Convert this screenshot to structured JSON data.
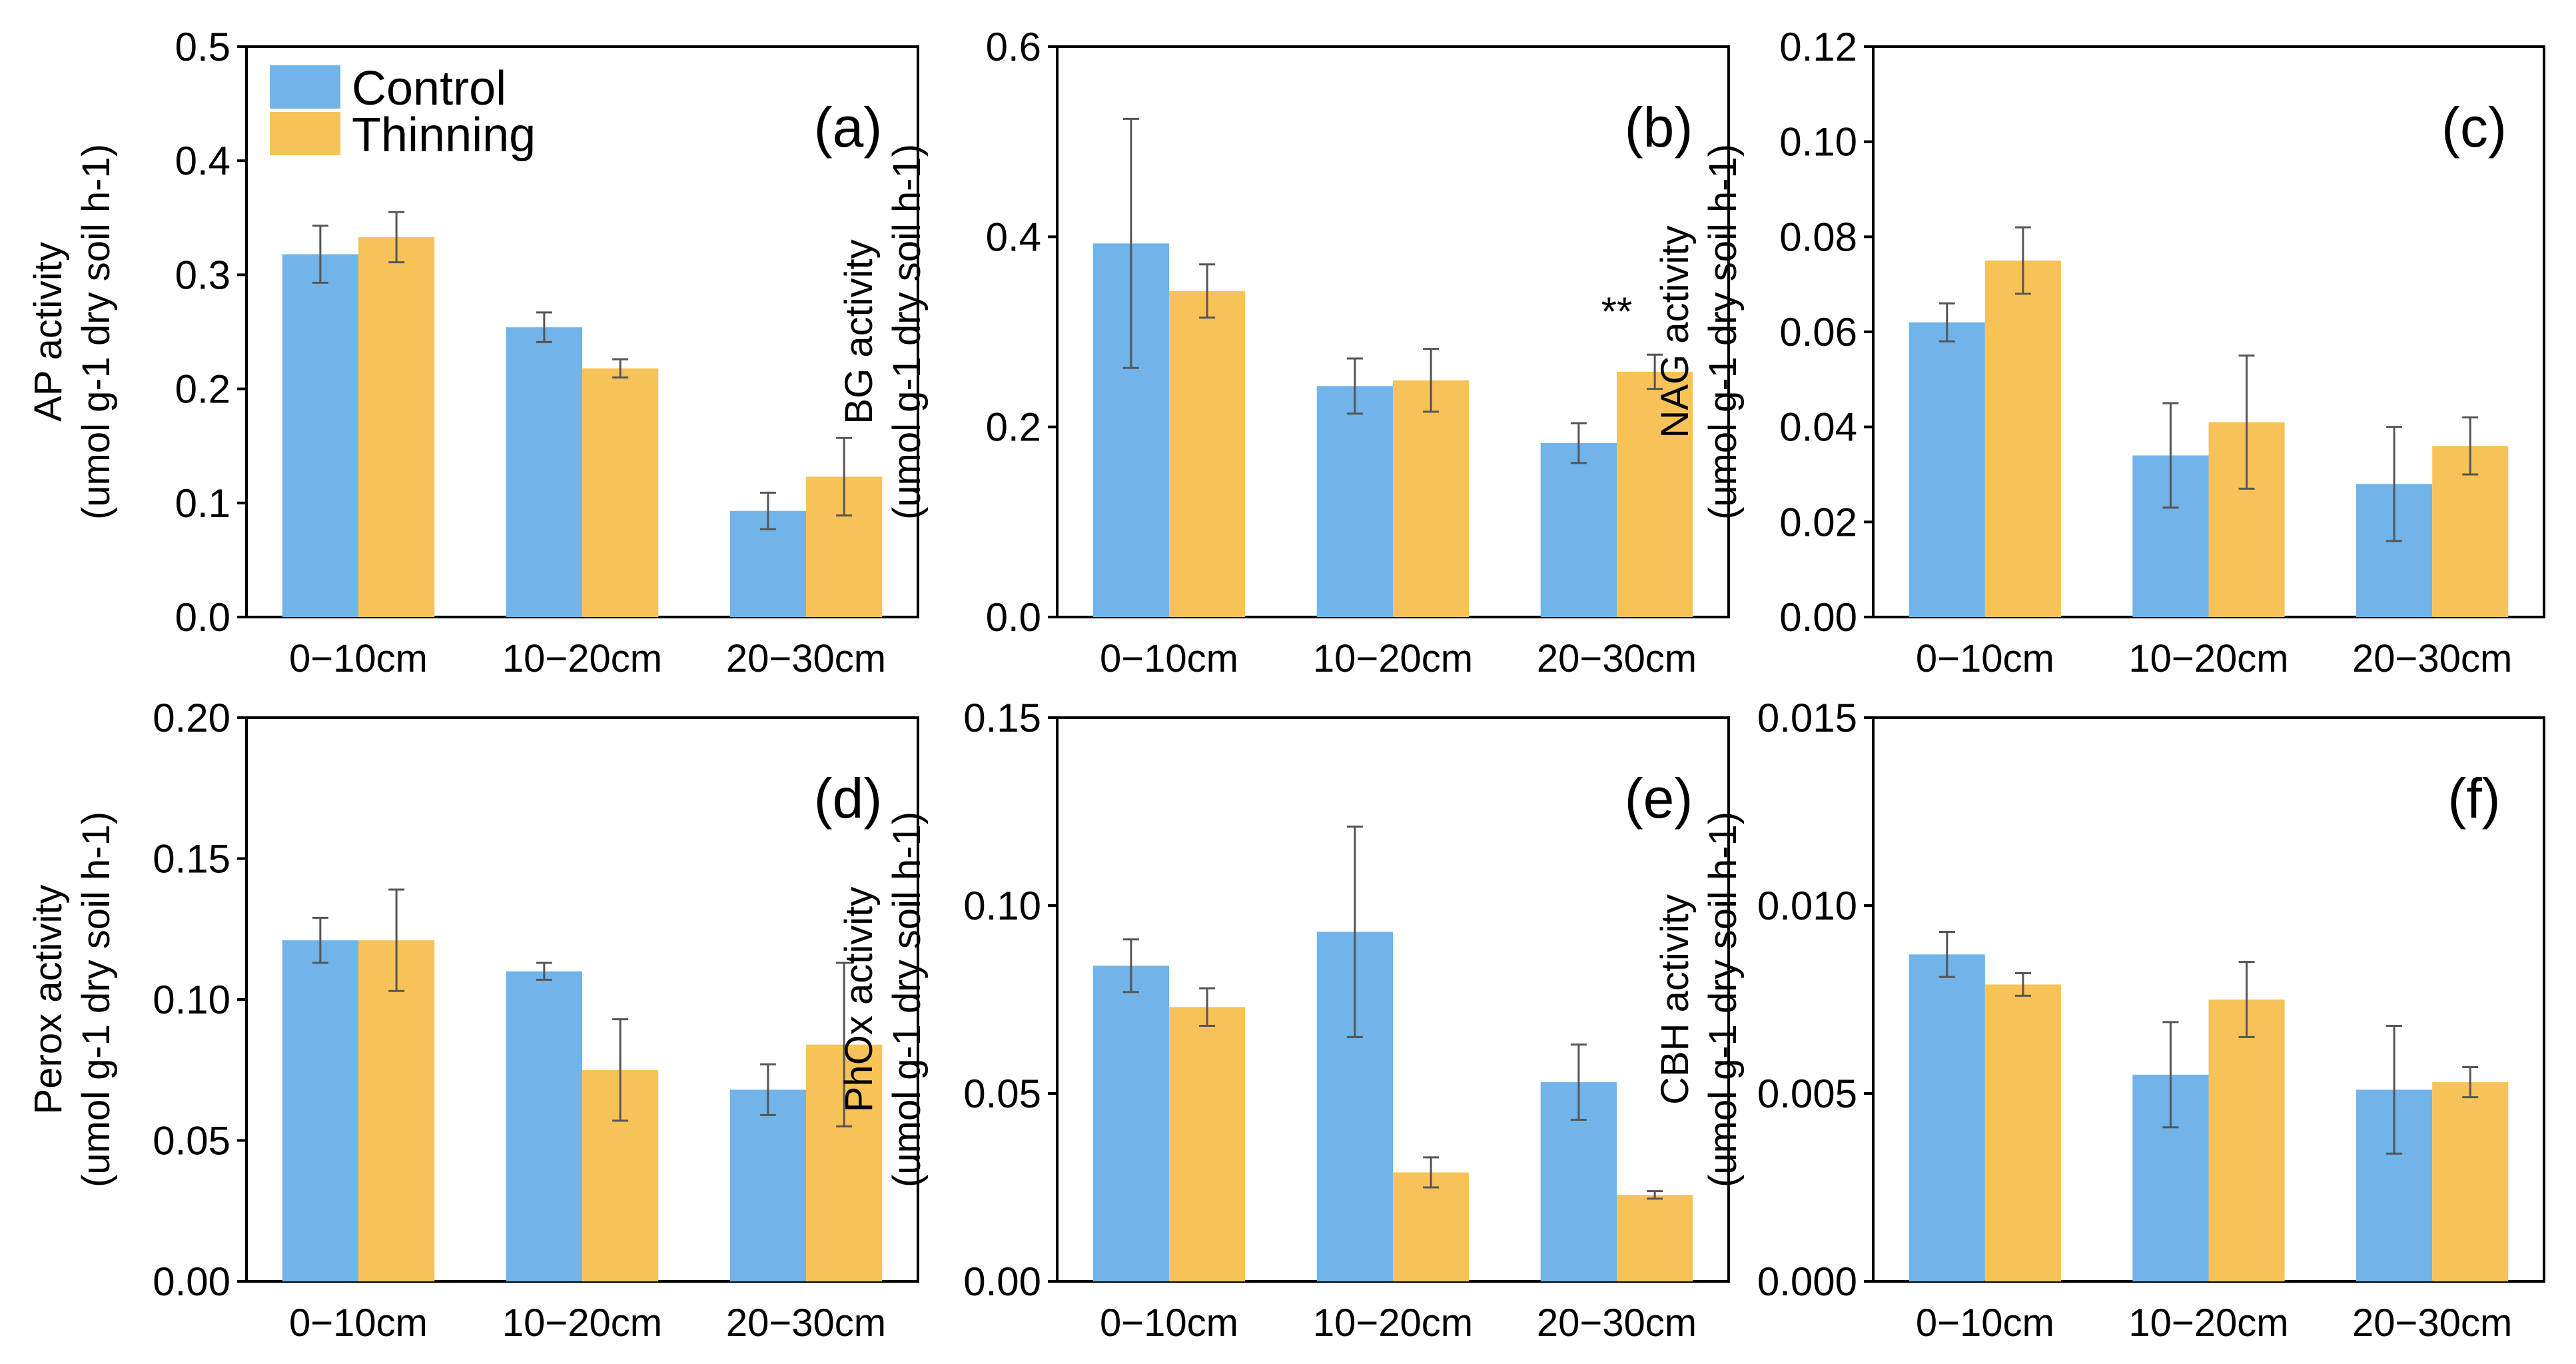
{
  "colors": {
    "control": "#70B4EA",
    "thinning": "#F7C358",
    "error_bar": "#555555",
    "axis": "#000000"
  },
  "legend": {
    "control": "Control",
    "thinning": "Thinning"
  },
  "chart_data": [
    {
      "type": "bar",
      "panel": "(a)",
      "ylabel_main": "AP activity",
      "ylabel_unit": "(umol g-1 dry soil h-1)",
      "categories": [
        "0−10cm",
        "10−20cm",
        "20−30cm"
      ],
      "yticks": [
        "0.0",
        "0.1",
        "0.2",
        "0.3",
        "0.4",
        "0.5"
      ],
      "ylim": [
        0,
        0.5
      ],
      "series": [
        {
          "name": "Control",
          "values": [
            0.318,
            0.254,
            0.093
          ],
          "errors": [
            0.025,
            0.013,
            0.016
          ]
        },
        {
          "name": "Thinning",
          "values": [
            0.333,
            0.218,
            0.123
          ],
          "errors": [
            0.022,
            0.008,
            0.034
          ]
        }
      ],
      "annotations": []
    },
    {
      "type": "bar",
      "panel": "(b)",
      "ylabel_main": "BG activity",
      "ylabel_unit": "(umol g-1 dry soil h-1)",
      "categories": [
        "0−10cm",
        "10−20cm",
        "20−30cm"
      ],
      "yticks": [
        "0.0",
        "0.2",
        "0.4",
        "0.6"
      ],
      "ylim": [
        0,
        0.6
      ],
      "series": [
        {
          "name": "Control",
          "values": [
            0.393,
            0.243,
            0.183
          ],
          "errors": [
            0.131,
            0.029,
            0.021
          ]
        },
        {
          "name": "Thinning",
          "values": [
            0.343,
            0.249,
            0.258
          ],
          "errors": [
            0.028,
            0.033,
            0.018
          ]
        }
      ],
      "annotations": [
        {
          "category_index": 2,
          "text": "**"
        }
      ]
    },
    {
      "type": "bar",
      "panel": "(c)",
      "ylabel_main": "NAG activity",
      "ylabel_unit": "(umol g-1 dry soil h-1)",
      "categories": [
        "0−10cm",
        "10−20cm",
        "20−30cm"
      ],
      "yticks": [
        "0.00",
        "0.02",
        "0.04",
        "0.06",
        "0.08",
        "0.10",
        "0.12"
      ],
      "ylim": [
        0,
        0.12
      ],
      "series": [
        {
          "name": "Control",
          "values": [
            0.062,
            0.034,
            0.028
          ],
          "errors": [
            0.004,
            0.011,
            0.012
          ]
        },
        {
          "name": "Thinning",
          "values": [
            0.075,
            0.041,
            0.036
          ],
          "errors": [
            0.007,
            0.014,
            0.006
          ]
        }
      ],
      "annotations": []
    },
    {
      "type": "bar",
      "panel": "(d)",
      "ylabel_main": "Perox activity",
      "ylabel_unit": "(umol g-1 dry soil h-1)",
      "categories": [
        "0−10cm",
        "10−20cm",
        "20−30cm"
      ],
      "yticks": [
        "0.00",
        "0.05",
        "0.10",
        "0.15",
        "0.20"
      ],
      "ylim": [
        0,
        0.2
      ],
      "series": [
        {
          "name": "Control",
          "values": [
            0.121,
            0.11,
            0.068
          ],
          "errors": [
            0.008,
            0.003,
            0.009
          ]
        },
        {
          "name": "Thinning",
          "values": [
            0.121,
            0.075,
            0.084
          ],
          "errors": [
            0.018,
            0.018,
            0.029
          ]
        }
      ],
      "annotations": []
    },
    {
      "type": "bar",
      "panel": "(e)",
      "ylabel_main": "PhOx activity",
      "ylabel_unit": "(umol g-1 dry soil h-1)",
      "categories": [
        "0−10cm",
        "10−20cm",
        "20−30cm"
      ],
      "yticks": [
        "0.00",
        "0.05",
        "0.10",
        "0.15"
      ],
      "ylim": [
        0,
        0.15
      ],
      "series": [
        {
          "name": "Control",
          "values": [
            0.084,
            0.093,
            0.053
          ],
          "errors": [
            0.007,
            0.028,
            0.01
          ]
        },
        {
          "name": "Thinning",
          "values": [
            0.073,
            0.029,
            0.023
          ],
          "errors": [
            0.005,
            0.004,
            0.001
          ]
        }
      ],
      "annotations": []
    },
    {
      "type": "bar",
      "panel": "(f)",
      "ylabel_main": "CBH activity",
      "ylabel_unit": "(umol g-1 dry soil h-1)",
      "categories": [
        "0−10cm",
        "10−20cm",
        "20−30cm"
      ],
      "yticks": [
        "0.000",
        "0.005",
        "0.010",
        "0.015"
      ],
      "ylim": [
        0,
        0.015
      ],
      "series": [
        {
          "name": "Control",
          "values": [
            0.0087,
            0.0055,
            0.0051
          ],
          "errors": [
            0.0006,
            0.0014,
            0.0017
          ]
        },
        {
          "name": "Thinning",
          "values": [
            0.0079,
            0.0075,
            0.0053
          ],
          "errors": [
            0.0003,
            0.001,
            0.0004
          ]
        }
      ],
      "annotations": []
    }
  ]
}
